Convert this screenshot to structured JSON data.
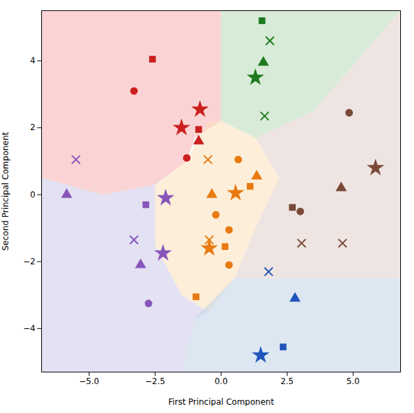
{
  "chart_data": {
    "type": "scatter",
    "xlabel": "First Principal Component",
    "ylabel": "Second Principal Component",
    "xlim": [
      -6.8,
      6.8
    ],
    "ylim": [
      -5.3,
      5.5
    ],
    "xticks": [
      {
        "value": -5.0,
        "label": "−5.0"
      },
      {
        "value": -2.5,
        "label": "−2.5"
      },
      {
        "value": 0.0,
        "label": "0.0"
      },
      {
        "value": 2.5,
        "label": "2.5"
      },
      {
        "value": 5.0,
        "label": "5.0"
      }
    ],
    "yticks": [
      -4,
      -2,
      0,
      2,
      4
    ],
    "grid": false,
    "regions": [
      {
        "color": "#f5b0b0",
        "vertices": [
          [
            -6.8,
            5.5
          ],
          [
            -6.8,
            0.5
          ],
          [
            -4.5,
            0.0
          ],
          [
            -2.5,
            0.3
          ],
          [
            -1.3,
            1.0
          ],
          [
            -1.0,
            1.7
          ],
          [
            0.0,
            2.2
          ],
          [
            0.0,
            5.5
          ]
        ]
      },
      {
        "color": "#b8dbb8",
        "vertices": [
          [
            0.0,
            5.5
          ],
          [
            0.0,
            2.2
          ],
          [
            1.3,
            1.7
          ],
          [
            3.5,
            2.5
          ],
          [
            6.8,
            5.5
          ]
        ]
      },
      {
        "color": "#fce0bc",
        "vertices": [
          [
            -1.3,
            1.0
          ],
          [
            -0.5,
            2.2
          ],
          [
            0.0,
            2.2
          ],
          [
            1.3,
            1.7
          ],
          [
            2.2,
            0.5
          ],
          [
            1.3,
            -1.0
          ],
          [
            0.5,
            -2.5
          ],
          [
            -0.5,
            -3.5
          ],
          [
            -1.5,
            -3.0
          ],
          [
            -2.5,
            -1.5
          ],
          [
            -2.5,
            0.3
          ],
          [
            -1.3,
            1.0
          ]
        ]
      },
      {
        "color": "#ccc8e8",
        "vertices": [
          [
            -6.8,
            0.5
          ],
          [
            -6.8,
            -5.3
          ],
          [
            -1.5,
            -5.3
          ],
          [
            -1.0,
            -3.7
          ],
          [
            -0.5,
            -3.5
          ],
          [
            -1.5,
            -3.0
          ],
          [
            -2.5,
            -1.5
          ],
          [
            -2.5,
            0.3
          ],
          [
            -4.5,
            0.0
          ],
          [
            -6.8,
            0.5
          ]
        ]
      },
      {
        "color": "#e0d0cc",
        "vertices": [
          [
            3.5,
            2.5
          ],
          [
            1.3,
            1.7
          ],
          [
            2.2,
            0.5
          ],
          [
            1.3,
            -1.0
          ],
          [
            0.5,
            -2.5
          ],
          [
            6.8,
            -2.5
          ],
          [
            6.8,
            5.5
          ]
        ]
      },
      {
        "color": "#c0d4e8",
        "vertices": [
          [
            -1.5,
            -5.3
          ],
          [
            6.8,
            -5.3
          ],
          [
            6.8,
            -2.5
          ],
          [
            0.5,
            -2.5
          ],
          [
            -1.0,
            -3.7
          ],
          [
            -1.5,
            -5.3
          ]
        ]
      }
    ],
    "points": [
      {
        "color": "#cc2020",
        "marker": "square",
        "x": -2.6,
        "y": 4.05
      },
      {
        "color": "#cc2020",
        "marker": "circle",
        "x": -3.3,
        "y": 3.1
      },
      {
        "color": "#cc2020",
        "marker": "star",
        "x": -0.8,
        "y": 2.55
      },
      {
        "color": "#cc2020",
        "marker": "star",
        "x": -1.5,
        "y": 2.0
      },
      {
        "color": "#cc2020",
        "marker": "square",
        "x": -0.85,
        "y": 1.95
      },
      {
        "color": "#cc2020",
        "marker": "triangle",
        "x": -0.85,
        "y": 1.6
      },
      {
        "color": "#cc2020",
        "marker": "circle",
        "x": -1.3,
        "y": 1.1
      },
      {
        "color": "#1e7a1e",
        "marker": "square",
        "x": 1.55,
        "y": 5.2
      },
      {
        "color": "#1e7a1e",
        "marker": "x",
        "x": 1.85,
        "y": 4.6
      },
      {
        "color": "#1e7a1e",
        "marker": "triangle",
        "x": 1.6,
        "y": 3.95
      },
      {
        "color": "#1e7a1e",
        "marker": "star",
        "x": 1.3,
        "y": 3.5
      },
      {
        "color": "#1e7a1e",
        "marker": "x",
        "x": 1.65,
        "y": 2.35
      },
      {
        "color": "#2255bb",
        "marker": "x",
        "x": 1.8,
        "y": -2.3
      },
      {
        "color": "#2255bb",
        "marker": "triangle",
        "x": 2.8,
        "y": -3.1
      },
      {
        "color": "#2255bb",
        "marker": "square",
        "x": 2.35,
        "y": -4.55
      },
      {
        "color": "#2255bb",
        "marker": "star",
        "x": 1.5,
        "y": -4.8
      },
      {
        "color": "#e87a10",
        "marker": "x",
        "x": -0.5,
        "y": 1.05
      },
      {
        "color": "#e87a10",
        "marker": "circle",
        "x": 0.65,
        "y": 1.05
      },
      {
        "color": "#e87a10",
        "marker": "triangle",
        "x": -0.35,
        "y": 0.0
      },
      {
        "color": "#e87a10",
        "marker": "triangle",
        "x": 1.35,
        "y": 0.55
      },
      {
        "color": "#e87a10",
        "marker": "square",
        "x": 1.1,
        "y": 0.25
      },
      {
        "color": "#e87a10",
        "marker": "star",
        "x": 0.55,
        "y": 0.05
      },
      {
        "color": "#e87a10",
        "marker": "circle",
        "x": -0.2,
        "y": -0.6
      },
      {
        "color": "#e87a10",
        "marker": "circle",
        "x": 0.3,
        "y": -1.05
      },
      {
        "color": "#e87a10",
        "marker": "x",
        "x": -0.45,
        "y": -1.35
      },
      {
        "color": "#e87a10",
        "marker": "star",
        "x": -0.45,
        "y": -1.6
      },
      {
        "color": "#e87a10",
        "marker": "square",
        "x": 0.15,
        "y": -1.55
      },
      {
        "color": "#e87a10",
        "marker": "circle",
        "x": 0.3,
        "y": -2.1
      },
      {
        "color": "#e87a10",
        "marker": "square",
        "x": -0.95,
        "y": -3.05
      },
      {
        "color": "#8855bb",
        "marker": "x",
        "x": -5.5,
        "y": 1.05
      },
      {
        "color": "#8855bb",
        "marker": "triangle",
        "x": -5.85,
        "y": 0.0
      },
      {
        "color": "#8855bb",
        "marker": "square",
        "x": -2.85,
        "y": -0.3
      },
      {
        "color": "#8855bb",
        "marker": "star",
        "x": -2.1,
        "y": -0.1
      },
      {
        "color": "#8855bb",
        "marker": "x",
        "x": -3.3,
        "y": -1.35
      },
      {
        "color": "#8855bb",
        "marker": "triangle",
        "x": -3.05,
        "y": -2.1
      },
      {
        "color": "#8855bb",
        "marker": "star",
        "x": -2.2,
        "y": -1.75
      },
      {
        "color": "#8855bb",
        "marker": "circle",
        "x": -2.75,
        "y": -3.25
      },
      {
        "color": "#7a4a38",
        "marker": "circle",
        "x": 4.85,
        "y": 2.45
      },
      {
        "color": "#7a4a38",
        "marker": "star",
        "x": 5.85,
        "y": 0.8
      },
      {
        "color": "#7a4a38",
        "marker": "triangle",
        "x": 4.55,
        "y": 0.2
      },
      {
        "color": "#7a4a38",
        "marker": "square",
        "x": 2.7,
        "y": -0.38
      },
      {
        "color": "#7a4a38",
        "marker": "circle",
        "x": 3.0,
        "y": -0.5
      },
      {
        "color": "#7a4a38",
        "marker": "x",
        "x": 3.05,
        "y": -1.45
      },
      {
        "color": "#7a4a38",
        "marker": "x",
        "x": 4.6,
        "y": -1.45
      }
    ]
  }
}
